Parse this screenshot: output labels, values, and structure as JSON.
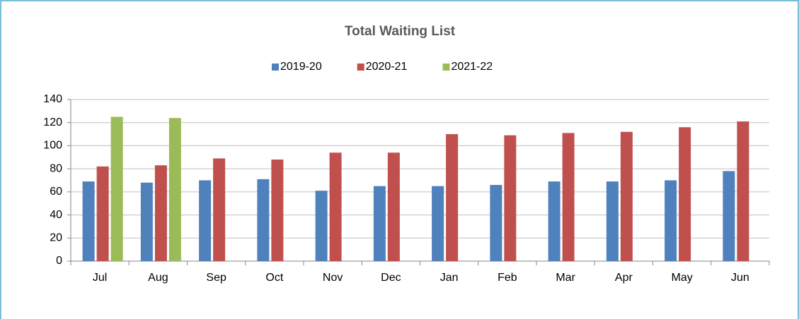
{
  "chart_data": {
    "type": "bar",
    "title": "Total Waiting List",
    "categories": [
      "Jul",
      "Aug",
      "Sep",
      "Oct",
      "Nov",
      "Dec",
      "Jan",
      "Feb",
      "Mar",
      "Apr",
      "May",
      "Jun"
    ],
    "series": [
      {
        "name": "2019-20",
        "color": "#4f81bd",
        "values": [
          69,
          68,
          70,
          71,
          61,
          65,
          65,
          66,
          69,
          69,
          70,
          78
        ]
      },
      {
        "name": "2020-21",
        "color": "#c0504d",
        "values": [
          82,
          83,
          89,
          88,
          94,
          94,
          110,
          109,
          111,
          112,
          116,
          121
        ]
      },
      {
        "name": "2021-22",
        "color": "#9bbb59",
        "values": [
          125,
          124,
          null,
          null,
          null,
          null,
          null,
          null,
          null,
          null,
          null,
          null
        ]
      }
    ],
    "ylim": [
      0,
      140
    ],
    "yticks": [
      0,
      20,
      40,
      60,
      80,
      100,
      120,
      140
    ],
    "grid": true,
    "legend": "top"
  }
}
